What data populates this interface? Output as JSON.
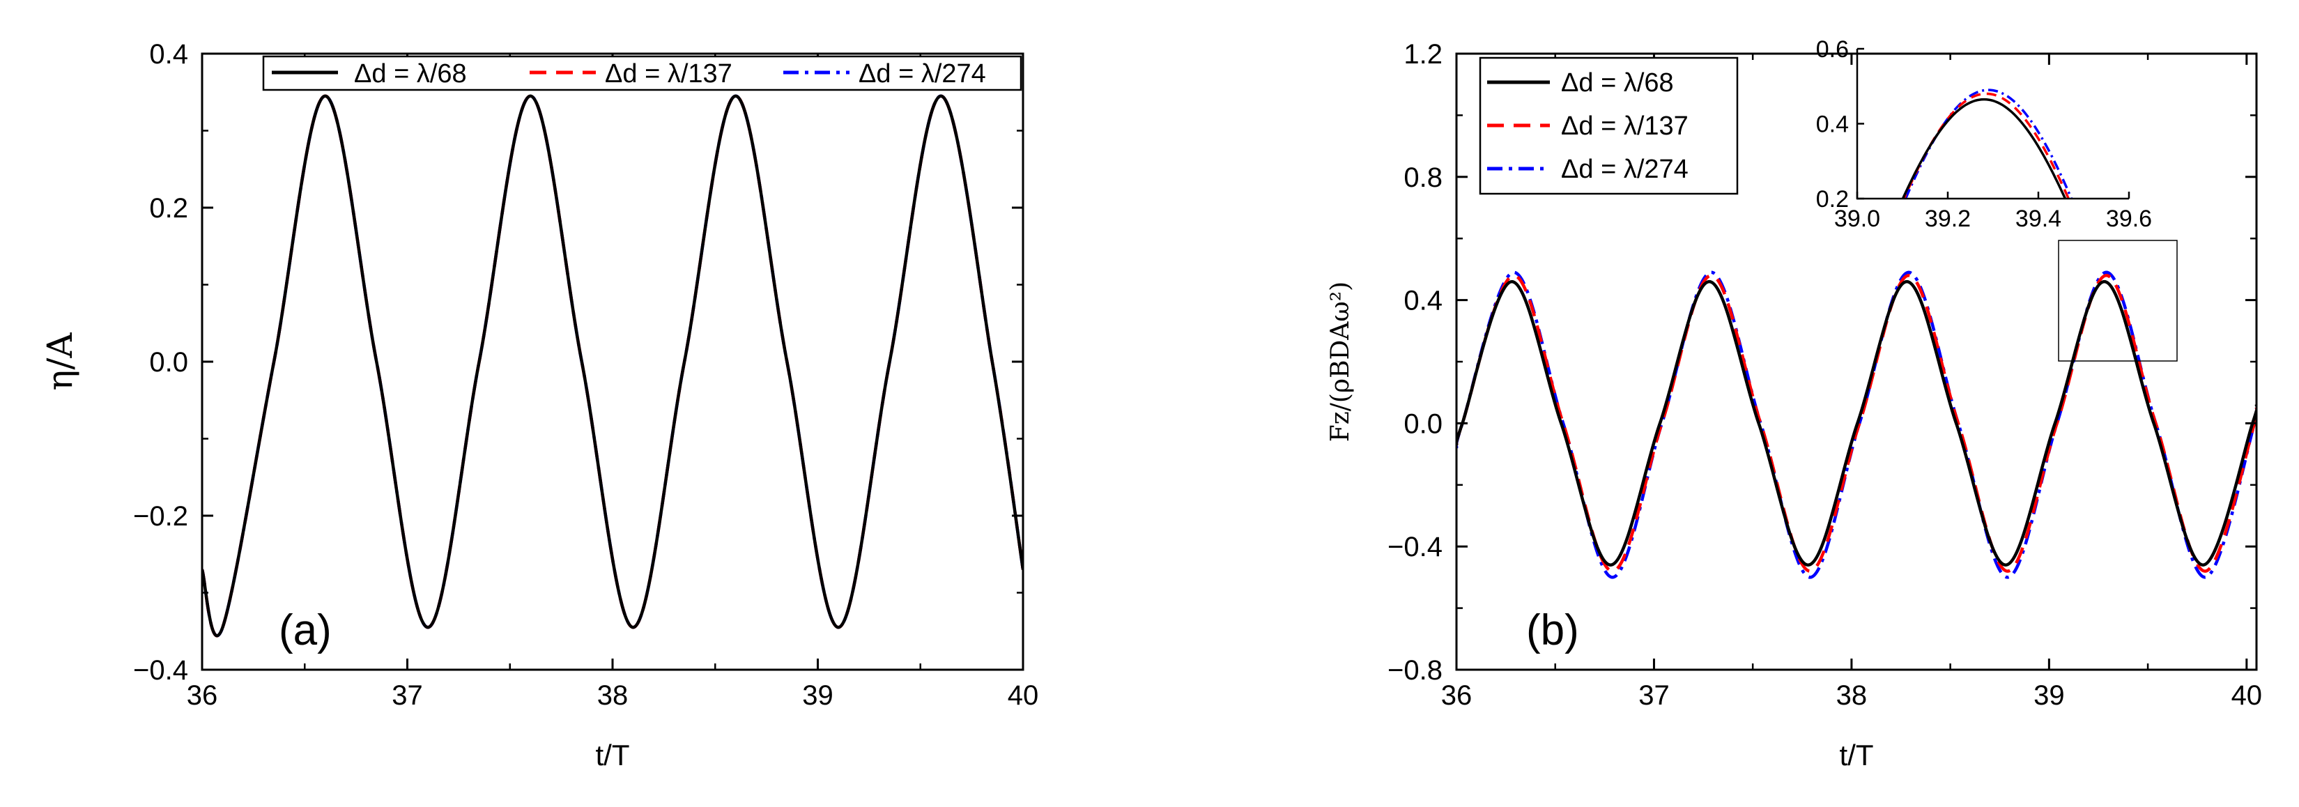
{
  "chart_data": [
    {
      "type": "line",
      "panel_label": "(a)",
      "xlabel": "t/T",
      "ylabel": "η/A",
      "xlim": [
        36,
        40
      ],
      "ylim": [
        -0.4,
        0.4
      ],
      "xticks": [
        36,
        37,
        38,
        39,
        40
      ],
      "yticks": [
        -0.4,
        -0.2,
        0.0,
        0.2,
        0.4
      ],
      "xtick_labels": [
        "36",
        "37",
        "38",
        "39",
        "40"
      ],
      "ytick_labels": [
        "−0.4",
        "−0.2",
        "0.0",
        "0.2",
        "0.4"
      ],
      "grid": false,
      "legend_position": "top",
      "legend_layout": "horizontal",
      "series": [
        {
          "name": "Δd = λ/68",
          "color": "#000000",
          "dash": "solid",
          "x": [
            36.0,
            36.1,
            36.35,
            36.6,
            36.85,
            37.1,
            37.35,
            37.6,
            37.85,
            38.1,
            38.35,
            38.6,
            38.85,
            39.1,
            39.35,
            39.6,
            39.85,
            40.0
          ],
          "y": [
            -0.27,
            -0.345,
            0.0,
            0.345,
            0.0,
            -0.345,
            0.0,
            0.345,
            0.0,
            -0.345,
            0.0,
            0.345,
            0.0,
            -0.345,
            0.0,
            0.345,
            0.0,
            -0.27
          ]
        },
        {
          "name": "Δd = λ/137",
          "color": "#ff0000",
          "dash": "dash",
          "x": [
            36.0,
            36.1,
            36.35,
            36.6,
            36.85,
            37.1,
            37.35,
            37.6,
            37.85,
            38.1,
            38.35,
            38.6,
            38.85,
            39.1,
            39.35,
            39.6,
            39.85,
            40.0
          ],
          "y": [
            -0.27,
            -0.345,
            0.0,
            0.345,
            0.0,
            -0.345,
            0.0,
            0.345,
            0.0,
            -0.345,
            0.0,
            0.345,
            0.0,
            -0.345,
            0.0,
            0.345,
            0.0,
            -0.27
          ]
        },
        {
          "name": "Δd = λ/274",
          "color": "#0000ff",
          "dash": "dashdot",
          "x": [
            36.0,
            36.1,
            36.35,
            36.6,
            36.85,
            37.1,
            37.35,
            37.6,
            37.85,
            38.1,
            38.35,
            38.6,
            38.85,
            39.1,
            39.35,
            39.6,
            39.85,
            40.0
          ],
          "y": [
            -0.27,
            -0.345,
            0.0,
            0.345,
            0.0,
            -0.345,
            0.0,
            0.345,
            0.0,
            -0.345,
            0.0,
            0.345,
            0.0,
            -0.345,
            0.0,
            0.345,
            0.0,
            -0.27
          ]
        }
      ]
    },
    {
      "type": "line",
      "panel_label": "(b)",
      "xlabel": "t/T",
      "ylabel": "Fz/(ρBDAω²)",
      "xlim": [
        36,
        40.05
      ],
      "ylim": [
        -0.8,
        1.2
      ],
      "xticks": [
        36,
        37,
        38,
        39,
        40
      ],
      "yticks": [
        -0.8,
        -0.4,
        0.0,
        0.4,
        0.8,
        1.2
      ],
      "xtick_labels": [
        "36",
        "37",
        "38",
        "39",
        "40"
      ],
      "ytick_labels": [
        "−0.8",
        "−0.4",
        "0.0",
        "0.4",
        "0.8",
        "1.2"
      ],
      "grid": false,
      "legend_position": "top-left",
      "legend_layout": "vertical",
      "zoom_box": {
        "x": [
          39.1,
          39.8
        ],
        "y": [
          0.2,
          0.6
        ]
      },
      "series": [
        {
          "name": "Δd = λ/68",
          "color": "#000000",
          "dash": "solid",
          "x": [
            36.0,
            36.03,
            36.28,
            36.53,
            36.78,
            37.03,
            37.28,
            37.53,
            37.78,
            38.03,
            38.28,
            38.53,
            38.78,
            39.03,
            39.28,
            39.53,
            39.78,
            40.03,
            40.05
          ],
          "y": [
            -0.07,
            0.0,
            0.46,
            0.0,
            -0.46,
            0.0,
            0.46,
            0.0,
            -0.46,
            0.0,
            0.46,
            0.0,
            -0.46,
            0.0,
            0.46,
            0.0,
            -0.46,
            0.0,
            0.06
          ]
        },
        {
          "name": "Δd = λ/137",
          "color": "#ff0000",
          "dash": "dash",
          "x": [
            36.0,
            36.03,
            36.29,
            36.54,
            36.79,
            37.04,
            37.29,
            37.54,
            37.79,
            38.04,
            38.29,
            38.54,
            38.79,
            39.04,
            39.29,
            39.54,
            39.79,
            40.04,
            40.05
          ],
          "y": [
            -0.07,
            0.0,
            0.48,
            0.0,
            -0.48,
            0.0,
            0.48,
            0.0,
            -0.48,
            0.0,
            0.48,
            0.0,
            -0.48,
            0.0,
            0.48,
            0.0,
            -0.48,
            0.0,
            0.05
          ]
        },
        {
          "name": "Δd = λ/274",
          "color": "#0000ff",
          "dash": "dashdot",
          "x": [
            36.0,
            36.03,
            36.29,
            36.54,
            36.79,
            37.04,
            37.29,
            37.54,
            37.79,
            38.04,
            38.29,
            38.54,
            38.79,
            39.04,
            39.29,
            39.54,
            39.79,
            40.04,
            40.05
          ],
          "y": [
            -0.08,
            0.0,
            0.49,
            0.0,
            -0.5,
            0.0,
            0.49,
            0.0,
            -0.5,
            0.0,
            0.49,
            0.0,
            -0.5,
            0.0,
            0.49,
            0.0,
            -0.5,
            0.0,
            0.05
          ]
        }
      ],
      "inset": {
        "xlim": [
          39.0,
          39.6
        ],
        "ylim": [
          0.2,
          0.6
        ],
        "xticks": [
          39.0,
          39.2,
          39.4,
          39.6
        ],
        "yticks": [
          0.2,
          0.4,
          0.6
        ],
        "xtick_labels": [
          "39.0",
          "39.2",
          "39.4",
          "39.6"
        ],
        "ytick_labels": [
          "0.2",
          "0.4",
          "0.6"
        ],
        "series": [
          {
            "name": "Δd = λ/68",
            "color": "#000000",
            "dash": "solid",
            "peak_x": 39.28,
            "peak_y": 0.465
          },
          {
            "name": "Δd = λ/137",
            "color": "#ff0000",
            "dash": "dash",
            "peak_x": 39.285,
            "peak_y": 0.48
          },
          {
            "name": "Δd = λ/274",
            "color": "#0000ff",
            "dash": "dashdot",
            "peak_x": 39.29,
            "peak_y": 0.49
          }
        ]
      }
    }
  ]
}
